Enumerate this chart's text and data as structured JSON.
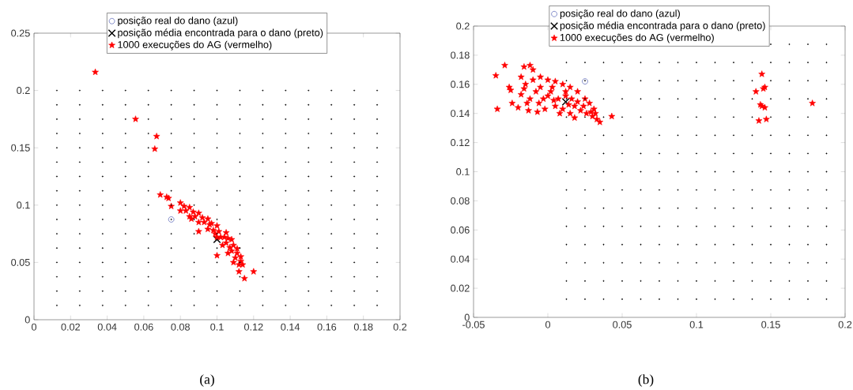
{
  "chart_data": [
    {
      "type": "scatter",
      "xlim": [
        0,
        0.2
      ],
      "ylim": [
        0,
        0.25
      ],
      "xticks": [
        0,
        0.02,
        0.04,
        0.06,
        0.08,
        0.1,
        0.12,
        0.14,
        0.16,
        0.18,
        0.2
      ],
      "yticks": [
        0,
        0.05,
        0.1,
        0.15,
        0.2,
        0.25
      ],
      "legend": "top",
      "annotations": [
        "(a)"
      ],
      "series": [
        {
          "color": "#000000",
          "marker": "circle",
          "x": [
            0.0125,
            0.025,
            0.0375,
            0.05,
            0.0625,
            0.075,
            0.0875,
            0.1,
            0.1125,
            0.125,
            0.1375,
            0.15,
            0.1625,
            0.175,
            0.1875,
            0.0125,
            0.025,
            0.0375,
            0.05,
            0.0625,
            0.075,
            0.0875,
            0.1,
            0.1125,
            0.125,
            0.1375,
            0.15,
            0.1625,
            0.175,
            0.1875,
            0.0125,
            0.025,
            0.0375,
            0.05,
            0.0625,
            0.075,
            0.0875,
            0.1,
            0.1125,
            0.125,
            0.1375,
            0.15,
            0.1625,
            0.175,
            0.1875,
            0.0125,
            0.025,
            0.0375,
            0.05,
            0.0625,
            0.075,
            0.0875,
            0.1,
            0.1125,
            0.125,
            0.1375,
            0.15,
            0.1625,
            0.175,
            0.1875,
            0.0125,
            0.025,
            0.0375,
            0.05,
            0.0625,
            0.075,
            0.0875,
            0.1,
            0.1125,
            0.125,
            0.1375,
            0.15,
            0.1625,
            0.175,
            0.1875,
            0.0125,
            0.025,
            0.0375,
            0.05,
            0.0625,
            0.075,
            0.0875,
            0.1,
            0.1125,
            0.125,
            0.1375,
            0.15,
            0.1625,
            0.175,
            0.1875,
            0.0125,
            0.025,
            0.0375,
            0.05,
            0.0625,
            0.075,
            0.0875,
            0.1,
            0.1125,
            0.125,
            0.1375,
            0.15,
            0.1625,
            0.175,
            0.1875,
            0.0125,
            0.025,
            0.0375,
            0.05,
            0.0625,
            0.075,
            0.0875,
            0.1,
            0.1125,
            0.125,
            0.1375,
            0.15,
            0.1625,
            0.175,
            0.1875,
            0.0125,
            0.025,
            0.0375,
            0.05,
            0.0625,
            0.075,
            0.0875,
            0.1,
            0.1125,
            0.125,
            0.1375,
            0.15,
            0.1625,
            0.175,
            0.1875,
            0.0125,
            0.025,
            0.0375,
            0.05,
            0.0625,
            0.075,
            0.0875,
            0.1,
            0.1125,
            0.125,
            0.1375,
            0.15,
            0.1625,
            0.175,
            0.1875,
            0.0125,
            0.025,
            0.0375,
            0.05,
            0.0625,
            0.075,
            0.0875,
            0.1,
            0.1125,
            0.125,
            0.1375,
            0.15,
            0.1625,
            0.175,
            0.1875,
            0.0125,
            0.025,
            0.0375,
            0.05,
            0.0625,
            0.075,
            0.0875,
            0.1,
            0.1125,
            0.125,
            0.1375,
            0.15,
            0.1625,
            0.175,
            0.1875,
            0.0125,
            0.025,
            0.0375,
            0.05,
            0.0625,
            0.075,
            0.0875,
            0.1,
            0.1125,
            0.125,
            0.1375,
            0.15,
            0.1625,
            0.175,
            0.1875,
            0.0125,
            0.025,
            0.0375,
            0.05,
            0.0625,
            0.075,
            0.0875,
            0.1,
            0.1125,
            0.125,
            0.1375,
            0.15,
            0.1625,
            0.175,
            0.1875,
            0.0125,
            0.025,
            0.0375,
            0.05,
            0.0625,
            0.075,
            0.0875,
            0.1,
            0.1125,
            0.125,
            0.1375,
            0.15,
            0.1625,
            0.175,
            0.1875,
            0.0125,
            0.025,
            0.0375,
            0.05,
            0.0625,
            0.075,
            0.0875,
            0.1,
            0.1125,
            0.125,
            0.1375,
            0.15,
            0.1625,
            0.175,
            0.1875
          ],
          "values": [
            0.0125,
            0.0125,
            0.0125,
            0.0125,
            0.0125,
            0.0125,
            0.0125,
            0.0125,
            0.0125,
            0.0125,
            0.0125,
            0.0125,
            0.0125,
            0.0125,
            0.0125,
            0.025,
            0.025,
            0.025,
            0.025,
            0.025,
            0.025,
            0.025,
            0.025,
            0.025,
            0.025,
            0.025,
            0.025,
            0.025,
            0.025,
            0.025,
            0.0375,
            0.0375,
            0.0375,
            0.0375,
            0.0375,
            0.0375,
            0.0375,
            0.0375,
            0.0375,
            0.0375,
            0.0375,
            0.0375,
            0.0375,
            0.0375,
            0.0375,
            0.05,
            0.05,
            0.05,
            0.05,
            0.05,
            0.05,
            0.05,
            0.05,
            0.05,
            0.05,
            0.05,
            0.05,
            0.05,
            0.05,
            0.05,
            0.0625,
            0.0625,
            0.0625,
            0.0625,
            0.0625,
            0.0625,
            0.0625,
            0.0625,
            0.0625,
            0.0625,
            0.0625,
            0.0625,
            0.0625,
            0.0625,
            0.0625,
            0.075,
            0.075,
            0.075,
            0.075,
            0.075,
            0.075,
            0.075,
            0.075,
            0.075,
            0.075,
            0.075,
            0.075,
            0.075,
            0.075,
            0.075,
            0.0875,
            0.0875,
            0.0875,
            0.0875,
            0.0875,
            0.0875,
            0.0875,
            0.0875,
            0.0875,
            0.0875,
            0.0875,
            0.0875,
            0.0875,
            0.0875,
            0.0875,
            0.1,
            0.1,
            0.1,
            0.1,
            0.1,
            0.1,
            0.1,
            0.1,
            0.1,
            0.1,
            0.1,
            0.1,
            0.1,
            0.1,
            0.1,
            0.1125,
            0.1125,
            0.1125,
            0.1125,
            0.1125,
            0.1125,
            0.1125,
            0.1125,
            0.1125,
            0.1125,
            0.1125,
            0.1125,
            0.1125,
            0.1125,
            0.1125,
            0.125,
            0.125,
            0.125,
            0.125,
            0.125,
            0.125,
            0.125,
            0.125,
            0.125,
            0.125,
            0.125,
            0.125,
            0.125,
            0.125,
            0.125,
            0.1375,
            0.1375,
            0.1375,
            0.1375,
            0.1375,
            0.1375,
            0.1375,
            0.1375,
            0.1375,
            0.1375,
            0.1375,
            0.1375,
            0.1375,
            0.1375,
            0.1375,
            0.15,
            0.15,
            0.15,
            0.15,
            0.15,
            0.15,
            0.15,
            0.15,
            0.15,
            0.15,
            0.15,
            0.15,
            0.15,
            0.15,
            0.15,
            0.1625,
            0.1625,
            0.1625,
            0.1625,
            0.1625,
            0.1625,
            0.1625,
            0.1625,
            0.1625,
            0.1625,
            0.1625,
            0.1625,
            0.1625,
            0.1625,
            0.1625,
            0.175,
            0.175,
            0.175,
            0.175,
            0.175,
            0.175,
            0.175,
            0.175,
            0.175,
            0.175,
            0.175,
            0.175,
            0.175,
            0.175,
            0.175,
            0.1875,
            0.1875,
            0.1875,
            0.1875,
            0.1875,
            0.1875,
            0.1875,
            0.1875,
            0.1875,
            0.1875,
            0.1875,
            0.1875,
            0.1875,
            0.1875,
            0.1875,
            0.2,
            0.2,
            0.2,
            0.2,
            0.2,
            0.2,
            0.2,
            0.2,
            0.2,
            0.2,
            0.2,
            0.2,
            0.2,
            0.2,
            0.2
          ]
        },
        {
          "name": "posição real do dano (azul)",
          "color": "#1f2f9f",
          "marker": "circle",
          "x": [
            0.075
          ],
          "values": [
            0.0875
          ]
        },
        {
          "name": "posição média encontrada para o dano (preto)",
          "color": "#000000",
          "marker": "cross",
          "x": [
            0.1
          ],
          "values": [
            0.07
          ]
        },
        {
          "name": "1000 execuções do AG (vermelho)",
          "color": "#ff0000",
          "marker": "star",
          "x": [
            0.0335,
            0.0555,
            0.067,
            0.066,
            0.069,
            0.0735,
            0.0725,
            0.075,
            0.12,
            0.115,
            0.09,
            0.08,
            0.085,
            0.09,
            0.095,
            0.1,
            0.105,
            0.108,
            0.111,
            0.113,
            0.114,
            0.08,
            0.085,
            0.09,
            0.095,
            0.1,
            0.103,
            0.106,
            0.109,
            0.112,
            0.1,
            0.083,
            0.088,
            0.093,
            0.098,
            0.102,
            0.105,
            0.108,
            0.11,
            0.112,
            0.086,
            0.104,
            0.096,
            0.082,
            0.087,
            0.092,
            0.097,
            0.101,
            0.106,
            0.109,
            0.111,
            0.113,
            0.099,
            0.107
          ],
          "values": [
            0.216,
            0.175,
            0.16,
            0.149,
            0.109,
            0.106,
            0.107,
            0.099,
            0.042,
            0.036,
            0.077,
            0.102,
            0.098,
            0.093,
            0.088,
            0.082,
            0.076,
            0.07,
            0.062,
            0.055,
            0.048,
            0.095,
            0.09,
            0.085,
            0.079,
            0.072,
            0.065,
            0.058,
            0.05,
            0.042,
            0.056,
            0.095,
            0.09,
            0.085,
            0.078,
            0.072,
            0.067,
            0.06,
            0.054,
            0.048,
            0.088,
            0.072,
            0.083,
            0.099,
            0.094,
            0.089,
            0.084,
            0.077,
            0.071,
            0.065,
            0.058,
            0.051,
            0.075,
            0.063
          ]
        }
      ]
    },
    {
      "type": "scatter",
      "xlim": [
        -0.05,
        0.2
      ],
      "ylim": [
        0,
        0.2
      ],
      "xticks": [
        -0.05,
        0,
        0.05,
        0.1,
        0.15,
        0.2
      ],
      "yticks": [
        0,
        0.02,
        0.04,
        0.06,
        0.08,
        0.1,
        0.12,
        0.14,
        0.16,
        0.18,
        0.2
      ],
      "legend": "top",
      "annotations": [
        "(b)"
      ],
      "series": [
        {
          "color": "#000000",
          "marker": "circle",
          "x": [
            0.0125,
            0.025,
            0.0375,
            0.05,
            0.0625,
            0.075,
            0.0875,
            0.1,
            0.1125,
            0.125,
            0.1375,
            0.15,
            0.1625,
            0.175,
            0.1875,
            0.0125,
            0.025,
            0.0375,
            0.05,
            0.0625,
            0.075,
            0.0875,
            0.1,
            0.1125,
            0.125,
            0.1375,
            0.15,
            0.1625,
            0.175,
            0.1875,
            0.0125,
            0.025,
            0.0375,
            0.05,
            0.0625,
            0.075,
            0.0875,
            0.1,
            0.1125,
            0.125,
            0.1375,
            0.15,
            0.1625,
            0.175,
            0.1875,
            0.0125,
            0.025,
            0.0375,
            0.05,
            0.0625,
            0.075,
            0.0875,
            0.1,
            0.1125,
            0.125,
            0.1375,
            0.15,
            0.1625,
            0.175,
            0.1875,
            0.0125,
            0.025,
            0.0375,
            0.05,
            0.0625,
            0.075,
            0.0875,
            0.1,
            0.1125,
            0.125,
            0.1375,
            0.15,
            0.1625,
            0.175,
            0.1875,
            0.0125,
            0.025,
            0.0375,
            0.05,
            0.0625,
            0.075,
            0.0875,
            0.1,
            0.1125,
            0.125,
            0.1375,
            0.15,
            0.1625,
            0.175,
            0.1875,
            0.0125,
            0.025,
            0.0375,
            0.05,
            0.0625,
            0.075,
            0.0875,
            0.1,
            0.1125,
            0.125,
            0.1375,
            0.15,
            0.1625,
            0.175,
            0.1875,
            0.0125,
            0.025,
            0.0375,
            0.05,
            0.0625,
            0.075,
            0.0875,
            0.1,
            0.1125,
            0.125,
            0.1375,
            0.15,
            0.1625,
            0.175,
            0.1875,
            0.0125,
            0.025,
            0.0375,
            0.05,
            0.0625,
            0.075,
            0.0875,
            0.1,
            0.1125,
            0.125,
            0.1375,
            0.15,
            0.1625,
            0.175,
            0.1875,
            0.0125,
            0.025,
            0.0375,
            0.05,
            0.0625,
            0.075,
            0.0875,
            0.1,
            0.1125,
            0.125,
            0.1375,
            0.15,
            0.1625,
            0.175,
            0.1875,
            0.0125,
            0.025,
            0.0375,
            0.05,
            0.0625,
            0.075,
            0.0875,
            0.1,
            0.1125,
            0.125,
            0.1375,
            0.15,
            0.1625,
            0.175,
            0.1875,
            0.0125,
            0.025,
            0.0375,
            0.05,
            0.0625,
            0.075,
            0.0875,
            0.1,
            0.1125,
            0.125,
            0.1375,
            0.15,
            0.1625,
            0.175,
            0.1875,
            0.0125,
            0.025,
            0.0375,
            0.05,
            0.0625,
            0.075,
            0.0875,
            0.1,
            0.1125,
            0.125,
            0.1375,
            0.15,
            0.1625,
            0.175,
            0.1875,
            0.0125,
            0.025,
            0.0375,
            0.05,
            0.0625,
            0.075,
            0.0875,
            0.1,
            0.1125,
            0.125,
            0.1375,
            0.15,
            0.1625,
            0.175,
            0.1875,
            0.15,
            0.1625,
            0.175,
            0.1875
          ],
          "values": [
            0.0125,
            0.0125,
            0.0125,
            0.0125,
            0.0125,
            0.0125,
            0.0125,
            0.0125,
            0.0125,
            0.0125,
            0.0125,
            0.0125,
            0.0125,
            0.0125,
            0.0125,
            0.025,
            0.025,
            0.025,
            0.025,
            0.025,
            0.025,
            0.025,
            0.025,
            0.025,
            0.025,
            0.025,
            0.025,
            0.025,
            0.025,
            0.025,
            0.0375,
            0.0375,
            0.0375,
            0.0375,
            0.0375,
            0.0375,
            0.0375,
            0.0375,
            0.0375,
            0.0375,
            0.0375,
            0.0375,
            0.0375,
            0.0375,
            0.0375,
            0.05,
            0.05,
            0.05,
            0.05,
            0.05,
            0.05,
            0.05,
            0.05,
            0.05,
            0.05,
            0.05,
            0.05,
            0.05,
            0.05,
            0.05,
            0.0625,
            0.0625,
            0.0625,
            0.0625,
            0.0625,
            0.0625,
            0.0625,
            0.0625,
            0.0625,
            0.0625,
            0.0625,
            0.0625,
            0.0625,
            0.0625,
            0.0625,
            0.075,
            0.075,
            0.075,
            0.075,
            0.075,
            0.075,
            0.075,
            0.075,
            0.075,
            0.075,
            0.075,
            0.075,
            0.075,
            0.075,
            0.075,
            0.0875,
            0.0875,
            0.0875,
            0.0875,
            0.0875,
            0.0875,
            0.0875,
            0.0875,
            0.0875,
            0.0875,
            0.0875,
            0.0875,
            0.0875,
            0.0875,
            0.0875,
            0.1,
            0.1,
            0.1,
            0.1,
            0.1,
            0.1,
            0.1,
            0.1,
            0.1,
            0.1,
            0.1,
            0.1,
            0.1,
            0.1,
            0.1,
            0.1125,
            0.1125,
            0.1125,
            0.1125,
            0.1125,
            0.1125,
            0.1125,
            0.1125,
            0.1125,
            0.1125,
            0.1125,
            0.1125,
            0.1125,
            0.1125,
            0.1125,
            0.125,
            0.125,
            0.125,
            0.125,
            0.125,
            0.125,
            0.125,
            0.125,
            0.125,
            0.125,
            0.125,
            0.125,
            0.125,
            0.125,
            0.125,
            0.1375,
            0.1375,
            0.1375,
            0.1375,
            0.1375,
            0.1375,
            0.1375,
            0.1375,
            0.1375,
            0.1375,
            0.1375,
            0.1375,
            0.1375,
            0.1375,
            0.1375,
            0.15,
            0.15,
            0.15,
            0.15,
            0.15,
            0.15,
            0.15,
            0.15,
            0.15,
            0.15,
            0.15,
            0.15,
            0.15,
            0.15,
            0.15,
            0.1625,
            0.1625,
            0.1625,
            0.1625,
            0.1625,
            0.1625,
            0.1625,
            0.1625,
            0.1625,
            0.1625,
            0.1625,
            0.1625,
            0.1625,
            0.1625,
            0.1625,
            0.175,
            0.175,
            0.175,
            0.175,
            0.175,
            0.175,
            0.175,
            0.175,
            0.175,
            0.175,
            0.175,
            0.175,
            0.175,
            0.175,
            0.175,
            0.1875,
            0.1875,
            0.1875,
            0.1875
          ]
        },
        {
          "name": "posição real do dano (azul)",
          "color": "#1f2f9f",
          "marker": "circle",
          "x": [
            0.025
          ],
          "values": [
            0.162
          ]
        },
        {
          "name": "posição média encontrada para o dano (preto)",
          "color": "#000000",
          "marker": "cross",
          "x": [
            0.012
          ],
          "values": [
            0.148
          ]
        },
        {
          "name": "1000 execuções do AG (vermelho)",
          "color": "#ff0000",
          "marker": "star",
          "x": [
            -0.035,
            -0.034,
            -0.029,
            -0.026,
            -0.024,
            -0.02,
            -0.025,
            0.043,
            0.144,
            0.14,
            0.146,
            0.145,
            0.143,
            0.144,
            0.146,
            0.142,
            0.147,
            0.178,
            -0.016,
            -0.012,
            -0.01,
            -0.018,
            -0.015,
            -0.01,
            -0.005,
            0,
            0.005,
            0.01,
            0.015,
            -0.018,
            -0.012,
            -0.008,
            -0.003,
            0.002,
            0.007,
            0.012,
            0.016,
            0.02,
            0.025,
            0.028,
            -0.013,
            -0.007,
            -0.002,
            0.005,
            0.01,
            0.015,
            0.018,
            0.022,
            0.026,
            0.03,
            0.033,
            0.035,
            0.031,
            0.02,
            0.003,
            -0.005,
            0.008,
            0.014,
            -0.014,
            -0.006,
            0.004,
            0.018,
            0.024,
            0.029,
            0.032,
            -0.016,
            0.0,
            0.012
          ],
          "values": [
            0.166,
            0.143,
            0.173,
            0.158,
            0.147,
            0.144,
            0.156,
            0.138,
            0.167,
            0.155,
            0.158,
            0.157,
            0.146,
            0.145,
            0.144,
            0.135,
            0.136,
            0.147,
            0.172,
            0.173,
            0.17,
            0.165,
            0.16,
            0.163,
            0.165,
            0.163,
            0.162,
            0.16,
            0.158,
            0.153,
            0.15,
            0.155,
            0.15,
            0.155,
            0.15,
            0.152,
            0.15,
            0.148,
            0.15,
            0.147,
            0.142,
            0.141,
            0.143,
            0.145,
            0.143,
            0.14,
            0.137,
            0.142,
            0.14,
            0.138,
            0.136,
            0.134,
            0.143,
            0.155,
            0.158,
            0.158,
            0.14,
            0.146,
            0.147,
            0.147,
            0.149,
            0.145,
            0.145,
            0.141,
            0.14,
            0.157,
            0.152,
            0.155
          ]
        }
      ]
    }
  ]
}
